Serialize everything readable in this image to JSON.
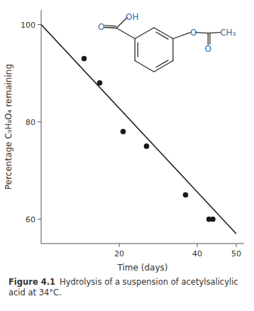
{
  "chart_data": {
    "type": "scatter",
    "title": "Figure 4.1",
    "subtitle": "Hydrolysis of a suspension of acetylsalicylic acid at 34°C.",
    "x_label": "Time (days)",
    "y_label": "Percentage C₉H₈O₄ remaining",
    "annotations": [
      "O",
      "OH",
      "O",
      "O",
      "CH₃"
    ],
    "series": [
      {
        "type": "line",
        "color": "#1a1a1a",
        "x": [
          0,
          50
        ],
        "values": [
          100,
          57
        ]
      },
      {
        "type": "scatter",
        "color": "#1a1a1a",
        "x": [
          11,
          15,
          21,
          27,
          37,
          43,
          44
        ],
        "values": [
          93,
          88,
          78,
          75,
          65,
          60,
          60
        ]
      }
    ],
    "xlim": [
      0,
      52
    ],
    "ylim": [
      55,
      103
    ],
    "xticks": [
      20,
      40,
      50
    ],
    "yticks": [
      60,
      80,
      100
    ],
    "grid": false
  }
}
